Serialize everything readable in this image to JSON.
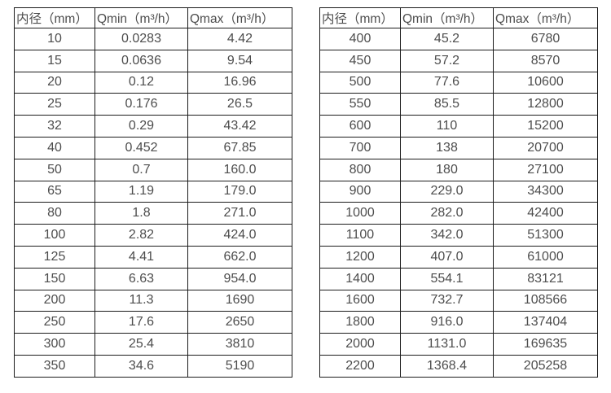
{
  "colors": {
    "background": "#ffffff",
    "border": "#1c1c1c",
    "text": "#4d4d4d"
  },
  "tables": [
    {
      "name": "small-diameter-flow-range",
      "headers": [
        "内径（mm）",
        "Qmin（m³/h）",
        "Qmax（m³/h）"
      ],
      "rows": [
        [
          "10",
          "0.0283",
          "4.42"
        ],
        [
          "15",
          "0.0636",
          "9.54"
        ],
        [
          "20",
          "0.12",
          "16.96"
        ],
        [
          "25",
          "0.176",
          "26.5"
        ],
        [
          "32",
          "0.29",
          "43.42"
        ],
        [
          "40",
          "0.452",
          "67.85"
        ],
        [
          "50",
          "0.7",
          "160.0"
        ],
        [
          "65",
          "1.19",
          "179.0"
        ],
        [
          "80",
          "1.8",
          "271.0"
        ],
        [
          "100",
          "2.82",
          "424.0"
        ],
        [
          "125",
          "4.41",
          "662.0"
        ],
        [
          "150",
          "6.63",
          "954.0"
        ],
        [
          "200",
          "11.3",
          "1690"
        ],
        [
          "250",
          "17.6",
          "2650"
        ],
        [
          "300",
          "25.4",
          "3810"
        ],
        [
          "350",
          "34.6",
          "5190"
        ]
      ]
    },
    {
      "name": "large-diameter-flow-range",
      "headers": [
        "内径（mm）",
        "Qmin（m³/h）",
        "Qmax（m³/h）"
      ],
      "rows": [
        [
          "400",
          "45.2",
          "6780"
        ],
        [
          "450",
          "57.2",
          "8570"
        ],
        [
          "500",
          "77.6",
          "10600"
        ],
        [
          "550",
          "85.5",
          "12800"
        ],
        [
          "600",
          "110",
          "15200"
        ],
        [
          "700",
          "138",
          "20700"
        ],
        [
          "800",
          "180",
          "27100"
        ],
        [
          "900",
          "229.0",
          "34300"
        ],
        [
          "1000",
          "282.0",
          "42400"
        ],
        [
          "1100",
          "342.0",
          "51300"
        ],
        [
          "1200",
          "407.0",
          "61000"
        ],
        [
          "1400",
          "554.1",
          "83121"
        ],
        [
          "1600",
          "732.7",
          "108566"
        ],
        [
          "1800",
          "916.0",
          "137404"
        ],
        [
          "2000",
          "1131.0",
          "169635"
        ],
        [
          "2200",
          "1368.4",
          "205258"
        ]
      ]
    }
  ]
}
